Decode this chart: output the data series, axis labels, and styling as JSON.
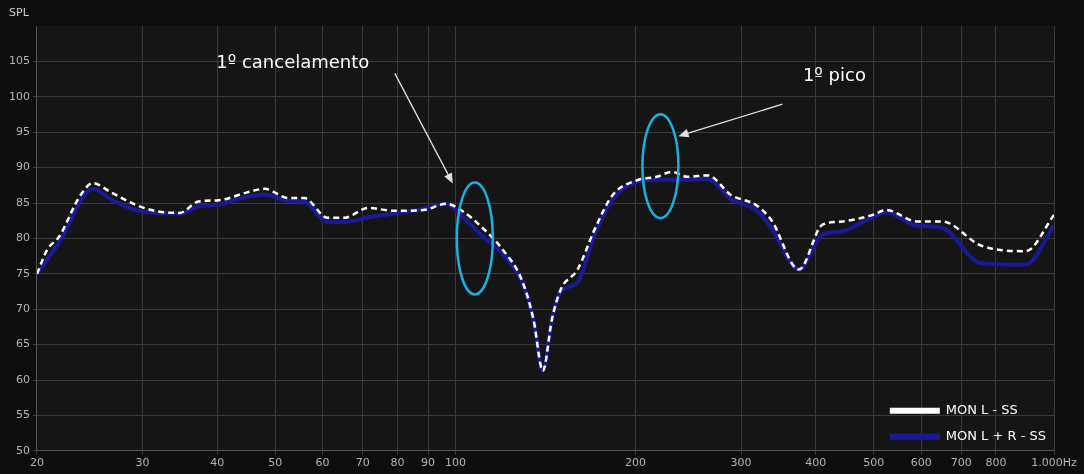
{
  "chart_data": {
    "type": "line",
    "ylabel": "SPL",
    "log": "x",
    "grid": true,
    "legend": "bottom right",
    "marker": "none",
    "xlim": [
      20,
      1000
    ],
    "ylim": [
      50,
      110
    ],
    "xticks": [
      20,
      30,
      40,
      50,
      60,
      70,
      80,
      90,
      100,
      200,
      300,
      400,
      500,
      600,
      700,
      800,
      {
        "value": 1000,
        "label": "1.000Hz"
      }
    ],
    "yticks": [
      50,
      55,
      60,
      65,
      70,
      75,
      80,
      85,
      90,
      95,
      100,
      105
    ],
    "series": [
      {
        "name": "MON L - SS",
        "color": "#ffffff",
        "line_style": "dashed",
        "x": [
          20,
          20.8,
          21.8,
          23.6,
          24.8,
          26.6,
          29.3,
          31.9,
          34.6,
          37.2,
          40.3,
          44.9,
          48,
          52.6,
          55.9,
          61.2,
          65.1,
          71.6,
          78.8,
          88.5,
          96.6,
          103,
          111,
          120,
          129,
          135,
          140,
          145,
          150,
          160,
          170.7,
          183,
          201,
          217,
          230,
          244,
          264,
          289,
          318,
          337,
          375,
          410,
          443,
          497,
          525,
          590,
          650,
          755,
          897,
          1000
        ],
        "values": [
          75,
          78.4,
          80.3,
          86,
          87.8,
          86.5,
          84.7,
          83.8,
          83.6,
          85.2,
          85.4,
          86.5,
          87,
          85.7,
          85.7,
          82.9,
          82.9,
          84.3,
          83.9,
          84,
          84.9,
          83.8,
          81.5,
          78.4,
          74.2,
          68.6,
          61.3,
          68.6,
          72.8,
          75.6,
          81.2,
          86.1,
          88.2,
          88.7,
          89.4,
          88.7,
          88.9,
          86.1,
          84.7,
          82.6,
          75.6,
          81.9,
          82.4,
          83.3,
          84,
          82.4,
          82.4,
          79,
          78.2,
          83.3
        ]
      },
      {
        "name": "MON L + R - SS",
        "color": "#1a1a99",
        "line_style": "solid",
        "x": [
          20,
          21.8,
          24.8,
          26.6,
          29.3,
          34.6,
          37.2,
          40.3,
          44.9,
          48,
          52.6,
          55.9,
          61.2,
          65.1,
          71.6,
          78.8,
          88.5,
          96.6,
          103,
          111,
          120,
          129,
          135,
          140,
          145,
          150,
          160,
          170.7,
          183,
          201,
          217,
          230,
          244,
          264,
          289,
          318,
          337,
          375,
          410,
          443,
          497,
          525,
          590,
          650,
          755,
          897,
          1000
        ],
        "values": [
          75,
          79.5,
          87,
          85.5,
          84,
          83.5,
          84.5,
          84.8,
          85.9,
          86.2,
          85.3,
          85.2,
          82.3,
          82.3,
          83,
          83.5,
          84.2,
          84.9,
          83,
          80.3,
          77.8,
          74,
          68.6,
          61.3,
          68.6,
          72.5,
          73.8,
          80.5,
          85.5,
          88,
          88.3,
          88.3,
          88.3,
          88.4,
          85.5,
          84,
          81.5,
          75.6,
          80.5,
          81,
          83,
          83.7,
          81.8,
          81.5,
          76.5,
          76.3,
          81.8
        ]
      }
    ],
    "annotations": [
      "1º cancelamento",
      "1º pico"
    ]
  }
}
